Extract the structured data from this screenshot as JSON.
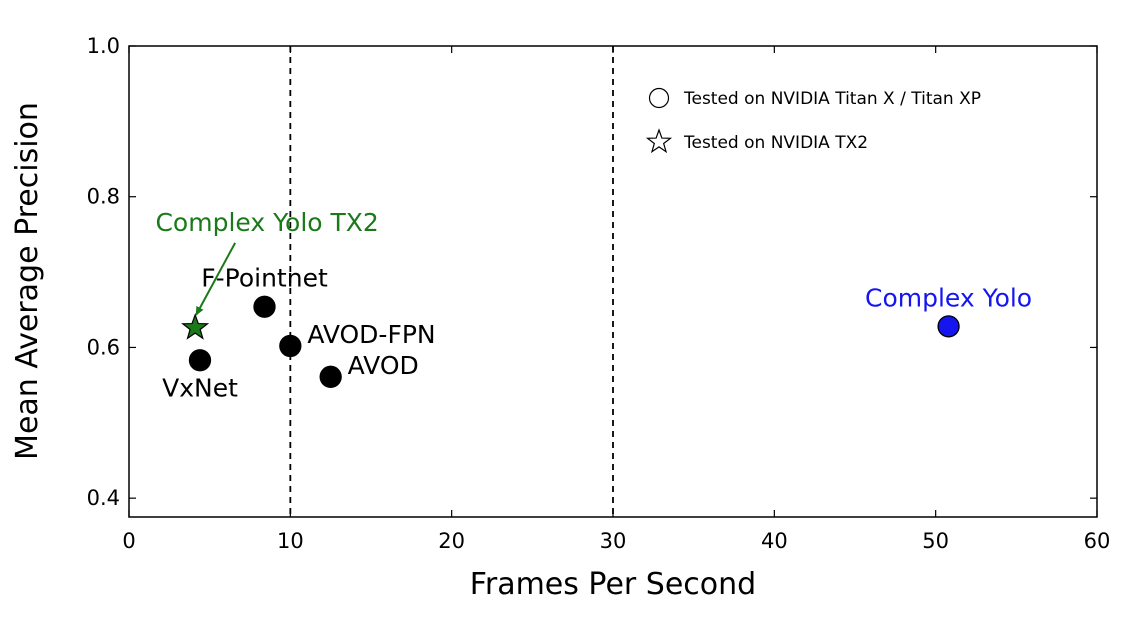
{
  "chart_data": {
    "type": "scatter",
    "title": "",
    "xlabel": "Frames Per Second",
    "ylabel": "Mean Average Precision",
    "xlim": [
      0,
      60
    ],
    "ylim": [
      0.375,
      1.0
    ],
    "xticks": [
      0,
      10,
      20,
      30,
      40,
      50,
      60
    ],
    "yticks": [
      0.4,
      0.6,
      0.8,
      1.0
    ],
    "xtick_labels": [
      "0",
      "10",
      "20",
      "30",
      "40",
      "50",
      "60"
    ],
    "ytick_labels": [
      "0.4",
      "0.6",
      "0.8",
      "1.0"
    ],
    "grid": false,
    "reference_lines": [
      {
        "axis": "x",
        "value": 10,
        "style": "dashed"
      },
      {
        "axis": "x",
        "value": 30,
        "style": "dashed"
      }
    ],
    "points": [
      {
        "label": "Complex Yolo TX2",
        "x": 4.1,
        "y": 0.626,
        "marker": "star",
        "color": "#1a7a1a",
        "label_pos": "above-annotated"
      },
      {
        "label": "F-Pointnet",
        "x": 8.4,
        "y": 0.654,
        "marker": "circle",
        "color": "#000000",
        "label_pos": "above"
      },
      {
        "label": "VxNet",
        "x": 4.4,
        "y": 0.583,
        "marker": "circle",
        "color": "#000000",
        "label_pos": "below"
      },
      {
        "label": "AVOD-FPN",
        "x": 10.0,
        "y": 0.602,
        "marker": "circle",
        "color": "#000000",
        "label_pos": "right-above"
      },
      {
        "label": "AVOD",
        "x": 12.5,
        "y": 0.561,
        "marker": "circle",
        "color": "#000000",
        "label_pos": "right-above"
      },
      {
        "label": "Complex Yolo",
        "x": 50.8,
        "y": 0.628,
        "marker": "circle",
        "color": "#1515f0",
        "label_pos": "above"
      }
    ],
    "legend": {
      "position": "top-right",
      "entries": [
        {
          "marker": "circle",
          "label": "Tested on NVIDIA Titan X / Titan XP"
        },
        {
          "marker": "star",
          "label": "Tested on NVIDIA TX2"
        }
      ]
    }
  }
}
